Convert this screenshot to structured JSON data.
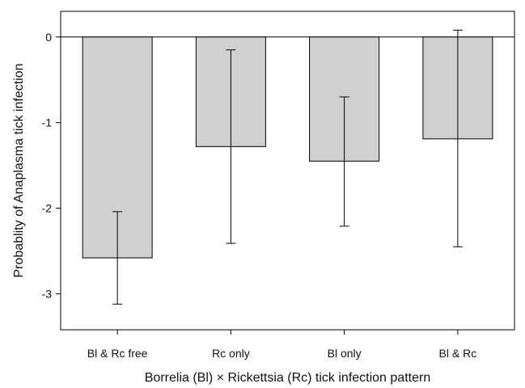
{
  "chart_data": {
    "type": "bar",
    "title": "",
    "xlabel": "Borrelia (Bl) × Rickettsia (Rc) tick infection pattern",
    "ylabel": "Probablity of Anaplasma tick infection",
    "categories": [
      "Bl & Rc free",
      "Rc only",
      "Bl only",
      "Bl & Rc"
    ],
    "values": [
      -2.58,
      -1.28,
      -1.45,
      -1.19
    ],
    "error_low": [
      -3.12,
      -2.41,
      -2.21,
      -2.45
    ],
    "error_high": [
      -2.04,
      -0.15,
      -0.7,
      0.08
    ],
    "ylim": [
      -3.42,
      0.3
    ],
    "yticks": [
      0,
      -1,
      -2,
      -3
    ],
    "zero_line": true,
    "grid": false,
    "legend": "none",
    "colors": {
      "bar_fill": "#d0d0d0",
      "bar_stroke": "#000000",
      "error_bar": "#000000",
      "axis": "#000000"
    }
  }
}
